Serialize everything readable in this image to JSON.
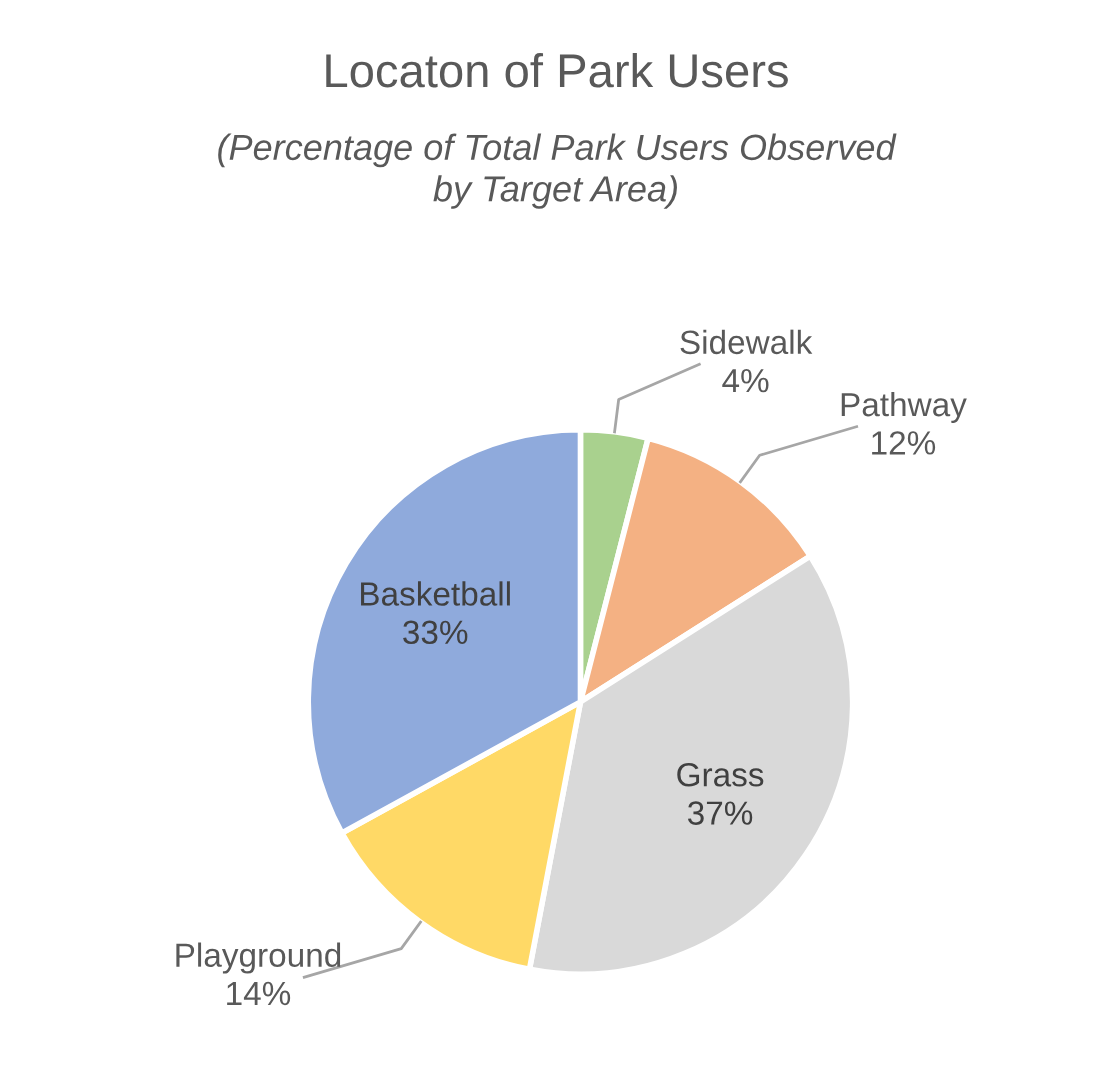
{
  "chart_data": {
    "type": "pie",
    "title": "Locaton of Park Users",
    "subtitle": "(Percentage of Total Park Users Observed\nby Target Area)",
    "categories": [
      "Sidewalk",
      "Pathway",
      "Grass",
      "Playground",
      "Basketball"
    ],
    "values": [
      4,
      12,
      37,
      14,
      33
    ],
    "colors": [
      "#a9d18e",
      "#f4b183",
      "#d9d9d9",
      "#ffd966",
      "#8faadc"
    ],
    "value_labels": [
      "4%",
      "12%",
      "37%",
      "14%",
      "33%"
    ],
    "legend": false
  }
}
